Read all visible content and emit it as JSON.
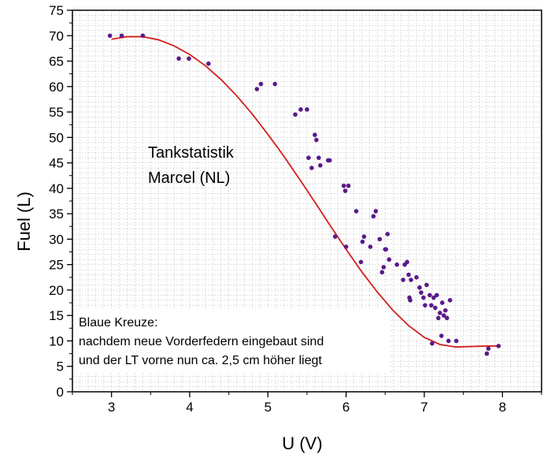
{
  "chart_data": {
    "type": "scatter",
    "xlabel": "U (V)",
    "ylabel": "Fuel (L)",
    "xlim": [
      2.5,
      8.5
    ],
    "ylim": [
      0,
      75
    ],
    "xticks": [
      3,
      4,
      5,
      6,
      7,
      8
    ],
    "yticks": [
      0,
      5,
      10,
      15,
      20,
      25,
      30,
      35,
      40,
      45,
      50,
      55,
      60,
      65,
      70,
      75
    ],
    "grid": true,
    "point_color": "#5a1a8a",
    "fit_color": "#d42020",
    "annotations": {
      "title_line1": "Tankstatistik",
      "title_line2": "Marcel (NL)",
      "note_line1": "Blaue Kreuze:",
      "note_line2": "nachdem neue Vorderfedern eingebaut sind",
      "note_line3": "und der LT vorne nun ca. 2,5 cm höher liegt"
    },
    "series": [
      {
        "type": "scatter",
        "x": [
          2.98,
          3.13,
          3.4,
          3.86,
          3.99,
          4.24,
          4.86,
          4.91,
          5.09,
          5.35,
          5.42,
          5.5,
          5.52,
          5.56,
          5.6,
          5.62,
          5.65,
          5.67,
          5.77,
          5.79,
          5.86,
          5.97,
          5.99,
          6.0,
          6.03,
          6.13,
          6.19,
          6.21,
          6.23,
          6.31,
          6.35,
          6.38,
          6.43,
          6.46,
          6.48,
          6.5,
          6.51,
          6.53,
          6.55,
          6.65,
          6.73,
          6.75,
          6.78,
          6.8,
          6.81,
          6.82,
          6.83,
          6.9,
          6.94,
          6.96,
          6.99,
          7.01,
          7.03,
          7.07,
          7.09,
          7.1,
          7.12,
          7.14,
          7.16,
          7.18,
          7.2,
          7.22,
          7.23,
          7.25,
          7.27,
          7.29,
          7.31,
          7.33,
          7.41,
          7.8,
          7.82,
          7.95
        ],
        "y": [
          70,
          70,
          70,
          65.5,
          65.5,
          64.5,
          59.5,
          60.5,
          60.5,
          54.5,
          55.5,
          55.5,
          46,
          44,
          50.5,
          49.5,
          46,
          44.5,
          45.5,
          45.5,
          30.5,
          40.5,
          39.5,
          28.5,
          40.5,
          35.5,
          25.5,
          29.5,
          30.5,
          28.5,
          34.5,
          35.5,
          30,
          23.5,
          24.5,
          28,
          28,
          31,
          26,
          25,
          22,
          25,
          25.5,
          23,
          18.5,
          18,
          22,
          22.5,
          20.5,
          19.5,
          18.5,
          17,
          21,
          19,
          17,
          9.5,
          18.5,
          16.5,
          19,
          14.5,
          15.5,
          11,
          17.5,
          15,
          16,
          14.5,
          10,
          18,
          10,
          7.5,
          8.5,
          9
        ]
      },
      {
        "type": "line",
        "x": [
          3.0,
          3.2,
          3.4,
          3.6,
          3.8,
          4.0,
          4.2,
          4.4,
          4.6,
          4.8,
          5.0,
          5.2,
          5.4,
          5.6,
          5.8,
          6.0,
          6.2,
          6.4,
          6.6,
          6.8,
          7.0,
          7.2,
          7.4,
          7.6,
          7.8,
          7.95
        ],
        "y": [
          69.3,
          69.8,
          69.8,
          69.2,
          68.0,
          66.3,
          64.1,
          61.4,
          58.2,
          54.6,
          50.6,
          46.4,
          41.9,
          37.3,
          32.6,
          28.0,
          23.6,
          19.6,
          16.0,
          13.0,
          10.7,
          9.3,
          8.8,
          8.9,
          9.0,
          9.0
        ]
      }
    ]
  }
}
